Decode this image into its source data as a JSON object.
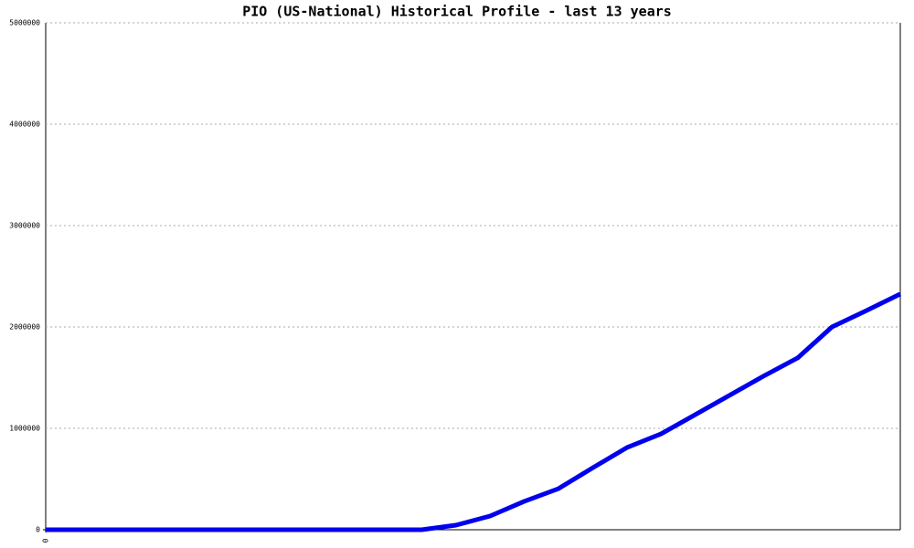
{
  "chart_data": {
    "type": "line",
    "title": "PIO (US-National) Historical Profile - last 13 years",
    "x": [
      0,
      1,
      2,
      3,
      4,
      5,
      6,
      7,
      8,
      9,
      10,
      11,
      12,
      13,
      14,
      15,
      16,
      17,
      18,
      19,
      20,
      21,
      22,
      23,
      24,
      25
    ],
    "series": [
      {
        "color": "#0000ee",
        "values": [
          0,
          0,
          0,
          0,
          0,
          0,
          0,
          0,
          0,
          0,
          0,
          0,
          45000,
          135000,
          280000,
          405000,
          610000,
          810000,
          945000,
          1135000,
          1325000,
          1515000,
          1695000,
          2000000,
          2160000,
          2325000
        ]
      }
    ],
    "xlim": [
      0,
      25
    ],
    "xticks": [
      0
    ],
    "ylim": [
      0,
      5000000
    ],
    "yticks": [
      0,
      1000000,
      2000000,
      3000000,
      4000000,
      5000000
    ],
    "grid": true
  }
}
